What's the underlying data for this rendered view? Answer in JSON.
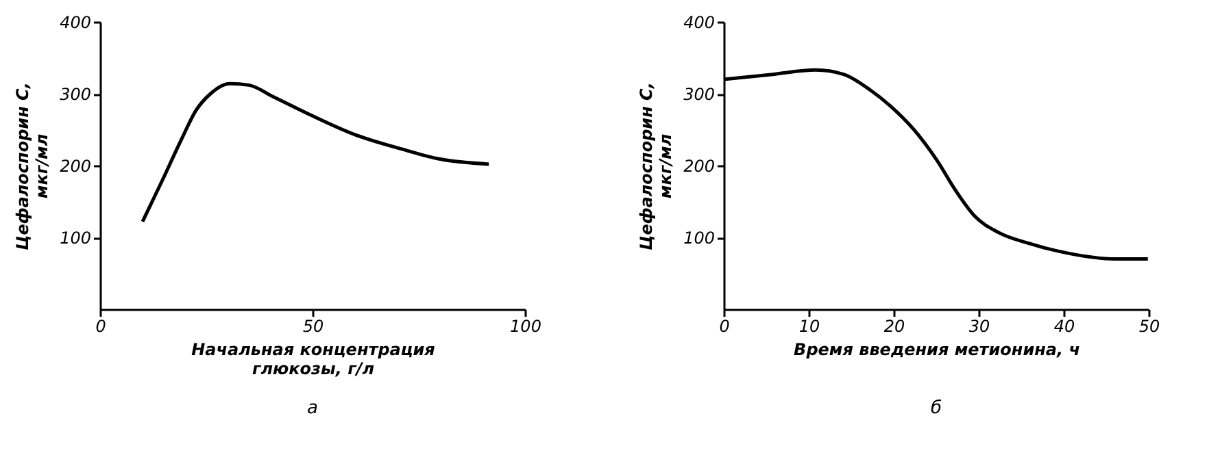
{
  "chart_data": [
    {
      "type": "line",
      "xlabel": "Начальная концентрация\nглюкозы, г/л",
      "ylabel": "Цефалоспорин С,\nмкг/мл",
      "annotations": [
        "а"
      ],
      "series": [
        {
          "color": "#000000",
          "x": [
            10,
            14.7,
            19.2,
            22.6,
            26,
            30.5,
            35,
            40.7,
            49.7,
            60,
            71,
            80,
            91.5
          ],
          "values": [
            122,
            180,
            237,
            277,
            300,
            314,
            312,
            296,
            270,
            243,
            223,
            209,
            202
          ]
        }
      ],
      "xlim": [
        0,
        100
      ],
      "xticks": [
        0,
        50,
        100
      ],
      "ylim": [
        0,
        400
      ],
      "yticks": [
        100,
        200,
        300,
        400
      ],
      "grid": false,
      "marker": "none",
      "line_style": "solid"
    },
    {
      "type": "line",
      "xlabel": "Время введения метионина, ч",
      "ylabel": "Цефалоспорин С,\nмкг/мл",
      "annotations": [
        "б"
      ],
      "series": [
        {
          "color": "#000000",
          "x": [
            0,
            5.8,
            10.8,
            14.1,
            16.9,
            19.6,
            22.3,
            25.1,
            27.3,
            29.5,
            32.3,
            36.1,
            40.5,
            46,
            49.9
          ],
          "values": [
            320,
            327,
            333,
            327,
            308,
            283,
            251,
            207,
            165,
            130,
            107,
            91,
            78,
            70,
            70
          ]
        }
      ],
      "xlim": [
        0,
        50
      ],
      "xticks": [
        0,
        10,
        20,
        30,
        40,
        50
      ],
      "ylim": [
        0,
        400
      ],
      "yticks": [
        100,
        200,
        300,
        400
      ],
      "grid": false,
      "marker": "none",
      "line_style": "solid"
    }
  ]
}
